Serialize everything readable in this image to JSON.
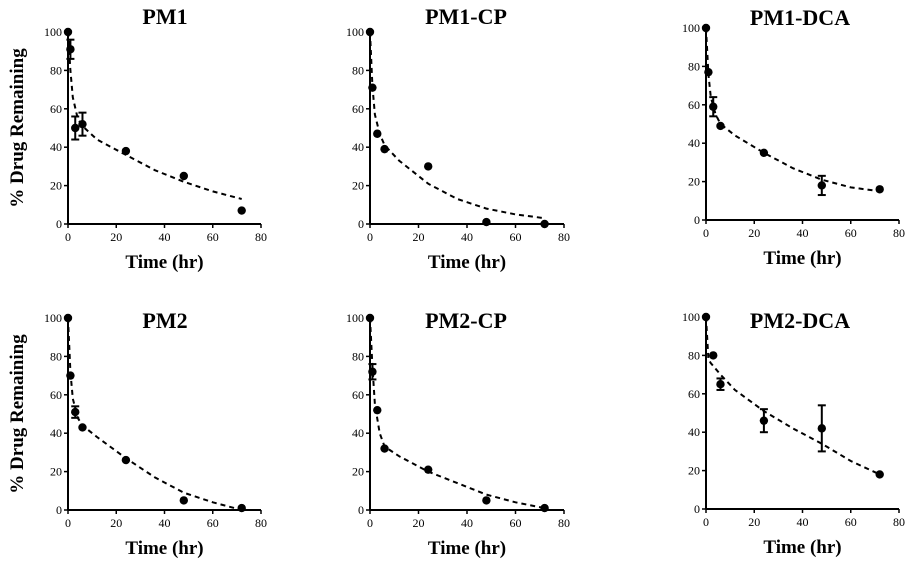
{
  "chart_data": [
    {
      "type": "scatter",
      "title": "PM1",
      "xlabel": "Time (hr)",
      "ylabel": "% Drug Remaining",
      "xlim": [
        0,
        80
      ],
      "ylim": [
        0,
        100
      ],
      "xticks": [
        0,
        20,
        40,
        60,
        80
      ],
      "yticks": [
        0,
        20,
        40,
        60,
        80,
        100
      ],
      "points": [
        {
          "x": 0,
          "y": 100,
          "err": 0
        },
        {
          "x": 1,
          "y": 91,
          "err": 5
        },
        {
          "x": 3,
          "y": 50,
          "err": 6
        },
        {
          "x": 6,
          "y": 52,
          "err": 6
        },
        {
          "x": 24,
          "y": 38,
          "err": 0
        },
        {
          "x": 48,
          "y": 25,
          "err": 0
        },
        {
          "x": 72,
          "y": 7,
          "err": 0
        }
      ],
      "fit": [
        [
          0,
          100
        ],
        [
          1,
          80
        ],
        [
          2,
          66
        ],
        [
          4,
          55
        ],
        [
          6,
          51
        ],
        [
          12,
          44
        ],
        [
          24,
          36
        ],
        [
          36,
          28
        ],
        [
          48,
          22
        ],
        [
          60,
          17
        ],
        [
          72,
          13
        ]
      ]
    },
    {
      "type": "scatter",
      "title": "PM1-CP",
      "xlabel": "Time (hr)",
      "ylabel": "",
      "xlim": [
        0,
        80
      ],
      "ylim": [
        0,
        100
      ],
      "xticks": [
        0,
        20,
        40,
        60,
        80
      ],
      "yticks": [
        0,
        20,
        40,
        60,
        80,
        100
      ],
      "points": [
        {
          "x": 0,
          "y": 100,
          "err": 0
        },
        {
          "x": 1,
          "y": 71,
          "err": 0
        },
        {
          "x": 3,
          "y": 47,
          "err": 0
        },
        {
          "x": 6,
          "y": 39,
          "err": 0
        },
        {
          "x": 24,
          "y": 30,
          "err": 0
        },
        {
          "x": 48,
          "y": 1,
          "err": 0
        },
        {
          "x": 72,
          "y": 0,
          "err": 0
        }
      ],
      "fit": [
        [
          0,
          100
        ],
        [
          1,
          72
        ],
        [
          2,
          57
        ],
        [
          4,
          47
        ],
        [
          6,
          41
        ],
        [
          12,
          33
        ],
        [
          24,
          21
        ],
        [
          36,
          13
        ],
        [
          48,
          8
        ],
        [
          60,
          5
        ],
        [
          72,
          3
        ]
      ]
    },
    {
      "type": "scatter",
      "title": "PM1-DCA",
      "xlabel": "Time (hr)",
      "ylabel": "",
      "xlim": [
        0,
        80
      ],
      "ylim": [
        0,
        100
      ],
      "xticks": [
        0,
        20,
        40,
        60,
        80
      ],
      "yticks": [
        0,
        20,
        40,
        60,
        80,
        100
      ],
      "points": [
        {
          "x": 0,
          "y": 100,
          "err": 0
        },
        {
          "x": 1,
          "y": 77,
          "err": 0
        },
        {
          "x": 3,
          "y": 59,
          "err": 5
        },
        {
          "x": 6,
          "y": 49,
          "err": 0
        },
        {
          "x": 24,
          "y": 35,
          "err": 0
        },
        {
          "x": 48,
          "y": 18,
          "err": 5
        },
        {
          "x": 72,
          "y": 16,
          "err": 0
        }
      ],
      "fit": [
        [
          0,
          100
        ],
        [
          1,
          76
        ],
        [
          2,
          64
        ],
        [
          4,
          55
        ],
        [
          6,
          50
        ],
        [
          12,
          44
        ],
        [
          24,
          35
        ],
        [
          36,
          27
        ],
        [
          48,
          21
        ],
        [
          60,
          17
        ],
        [
          72,
          15
        ]
      ]
    },
    {
      "type": "scatter",
      "title": "PM2",
      "xlabel": "Time (hr)",
      "ylabel": "% Drug Remaining",
      "xlim": [
        0,
        80
      ],
      "ylim": [
        0,
        100
      ],
      "xticks": [
        0,
        20,
        40,
        60,
        80
      ],
      "yticks": [
        0,
        20,
        40,
        60,
        80,
        100
      ],
      "points": [
        {
          "x": 0,
          "y": 100,
          "err": 0
        },
        {
          "x": 1,
          "y": 70,
          "err": 0
        },
        {
          "x": 3,
          "y": 51,
          "err": 3
        },
        {
          "x": 6,
          "y": 43,
          "err": 0
        },
        {
          "x": 24,
          "y": 26,
          "err": 0
        },
        {
          "x": 48,
          "y": 5,
          "err": 0
        },
        {
          "x": 72,
          "y": 1,
          "err": 0
        }
      ],
      "fit": [
        [
          0,
          100
        ],
        [
          1,
          72
        ],
        [
          2,
          58
        ],
        [
          4,
          48
        ],
        [
          6,
          44
        ],
        [
          12,
          38
        ],
        [
          24,
          27
        ],
        [
          36,
          17
        ],
        [
          48,
          9
        ],
        [
          60,
          4
        ],
        [
          72,
          0
        ]
      ]
    },
    {
      "type": "scatter",
      "title": "PM2-CP",
      "xlabel": "Time (hr)",
      "ylabel": "",
      "xlim": [
        0,
        80
      ],
      "ylim": [
        0,
        100
      ],
      "xticks": [
        0,
        20,
        40,
        60,
        80
      ],
      "yticks": [
        0,
        20,
        40,
        60,
        80,
        100
      ],
      "points": [
        {
          "x": 0,
          "y": 100,
          "err": 0
        },
        {
          "x": 1,
          "y": 72,
          "err": 4
        },
        {
          "x": 3,
          "y": 52,
          "err": 0
        },
        {
          "x": 6,
          "y": 32,
          "err": 0
        },
        {
          "x": 24,
          "y": 21,
          "err": 0
        },
        {
          "x": 48,
          "y": 5,
          "err": 0
        },
        {
          "x": 72,
          "y": 1,
          "err": 0
        }
      ],
      "fit": [
        [
          0,
          100
        ],
        [
          1,
          75
        ],
        [
          2,
          55
        ],
        [
          4,
          40
        ],
        [
          6,
          33
        ],
        [
          12,
          28
        ],
        [
          24,
          20
        ],
        [
          36,
          14
        ],
        [
          48,
          8
        ],
        [
          60,
          4
        ],
        [
          72,
          1
        ]
      ]
    },
    {
      "type": "scatter",
      "title": "PM2-DCA",
      "xlabel": "Time (hr)",
      "ylabel": "",
      "xlim": [
        0,
        80
      ],
      "ylim": [
        0,
        100
      ],
      "xticks": [
        0,
        20,
        40,
        60,
        80
      ],
      "yticks": [
        0,
        20,
        40,
        60,
        80,
        100
      ],
      "points": [
        {
          "x": 0,
          "y": 100,
          "err": 0
        },
        {
          "x": 3,
          "y": 80,
          "err": 0
        },
        {
          "x": 6,
          "y": 65,
          "err": 3
        },
        {
          "x": 24,
          "y": 46,
          "err": 6
        },
        {
          "x": 48,
          "y": 42,
          "err": 12
        },
        {
          "x": 72,
          "y": 18,
          "err": 0
        }
      ],
      "fit": [
        [
          0,
          100
        ],
        [
          1,
          78
        ],
        [
          2,
          76
        ],
        [
          6,
          70
        ],
        [
          12,
          62
        ],
        [
          24,
          51
        ],
        [
          36,
          42
        ],
        [
          48,
          34
        ],
        [
          60,
          25
        ],
        [
          72,
          18
        ]
      ]
    }
  ]
}
